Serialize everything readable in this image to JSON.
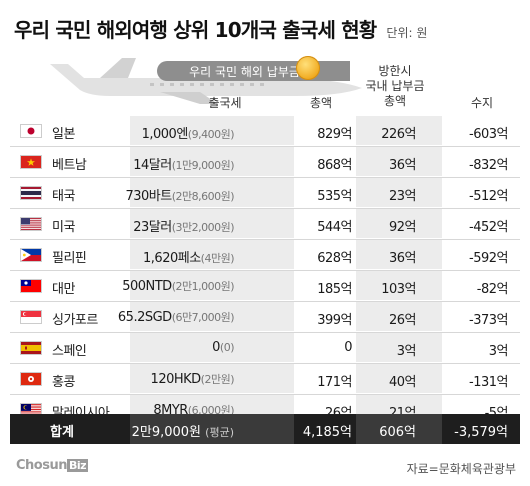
{
  "title": "우리 국민 해외여행 상위 10개국 출국세 현황",
  "unit": "단위: 원",
  "payment_label": "우리 국민 해외 납부금",
  "headers": {
    "departure_tax": "출국세",
    "total": "총액",
    "visitor_line1": "방한시",
    "visitor_line2": "국내 납부금",
    "visitor_line3": "총액",
    "balance": "수지"
  },
  "chart_data": {
    "type": "table",
    "title": "우리 국민 해외여행 상위 10개국 출국세 현황",
    "unit": "단위: 원",
    "columns": [
      "",
      "출국세",
      "총액",
      "방한시 국내 납부금 총액",
      "수지"
    ],
    "rows": [
      {
        "country": "일본",
        "tax": "1,000엔",
        "tax_krw": "(9,400원)",
        "total": "829억",
        "visitor": "226억",
        "balance": "-603억",
        "flag": "jp"
      },
      {
        "country": "베트남",
        "tax": "14달러",
        "tax_krw": "(1만9,000원)",
        "total": "868억",
        "visitor": "36억",
        "balance": "-832억",
        "flag": "vn"
      },
      {
        "country": "태국",
        "tax": "730바트",
        "tax_krw": "(2만8,600원)",
        "total": "535억",
        "visitor": "23억",
        "balance": "-512억",
        "flag": "th"
      },
      {
        "country": "미국",
        "tax": "23달러",
        "tax_krw": "(3만2,000원)",
        "total": "544억",
        "visitor": "92억",
        "balance": "-452억",
        "flag": "us"
      },
      {
        "country": "필리핀",
        "tax": "1,620페소",
        "tax_krw": "(4만원)",
        "total": "628억",
        "visitor": "36억",
        "balance": "-592억",
        "flag": "ph"
      },
      {
        "country": "대만",
        "tax": "500NTD",
        "tax_krw": "(2만1,000원)",
        "total": "185억",
        "visitor": "103억",
        "balance": "-82억",
        "flag": "tw"
      },
      {
        "country": "싱가포르",
        "tax": "65.2SGD",
        "tax_krw": "(6만7,000원)",
        "total": "399억",
        "visitor": "26억",
        "balance": "-373억",
        "flag": "sg"
      },
      {
        "country": "스페인",
        "tax": "0",
        "tax_krw": "(0)",
        "total": "0",
        "visitor": "3억",
        "balance": "3억",
        "flag": "es"
      },
      {
        "country": "홍콩",
        "tax": "120HKD",
        "tax_krw": "(2만원)",
        "total": "171억",
        "visitor": "40억",
        "balance": "-131억",
        "flag": "hk"
      },
      {
        "country": "말레이시아",
        "tax": "8MYR",
        "tax_krw": "(6,000원)",
        "total": "26억",
        "visitor": "21억",
        "balance": "-5억",
        "flag": "my"
      }
    ],
    "summary": {
      "label": "합계",
      "tax": "2만9,000원",
      "tax_note": "(평균)",
      "total": "4,185억",
      "visitor": "606억",
      "balance": "-3,579억"
    }
  },
  "footer": {
    "logo_main": "Chosun",
    "logo_biz": "Biz",
    "source": "자료=문화체육관광부"
  },
  "colors": {
    "shade": "#ececec",
    "summary_bg": "#1e1e1e",
    "pill": "#8e8e8e",
    "coin": "#f0a91e"
  }
}
